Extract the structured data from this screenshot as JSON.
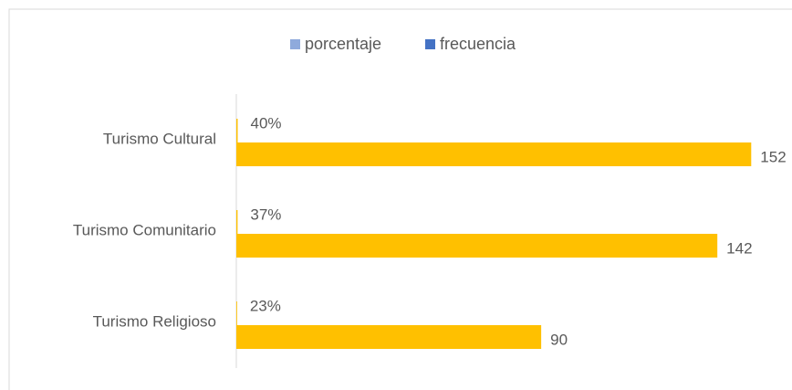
{
  "chart_data": {
    "type": "barh",
    "categories": [
      "Turismo Cultural",
      "Turismo Comunitario",
      "Turismo Religioso"
    ],
    "series": [
      {
        "name": "porcentaje",
        "color": "#8faadc",
        "values": [
          0.4,
          0.37,
          0.23
        ],
        "value_labels": [
          "40%",
          "37%",
          "23%"
        ]
      },
      {
        "name": "frecuencia",
        "color": "#4472c4",
        "values": [
          152,
          142,
          90
        ]
      }
    ],
    "bar_color": "#ffc000",
    "xlim": [
      0,
      160
    ],
    "grid": false,
    "legend": "top"
  }
}
